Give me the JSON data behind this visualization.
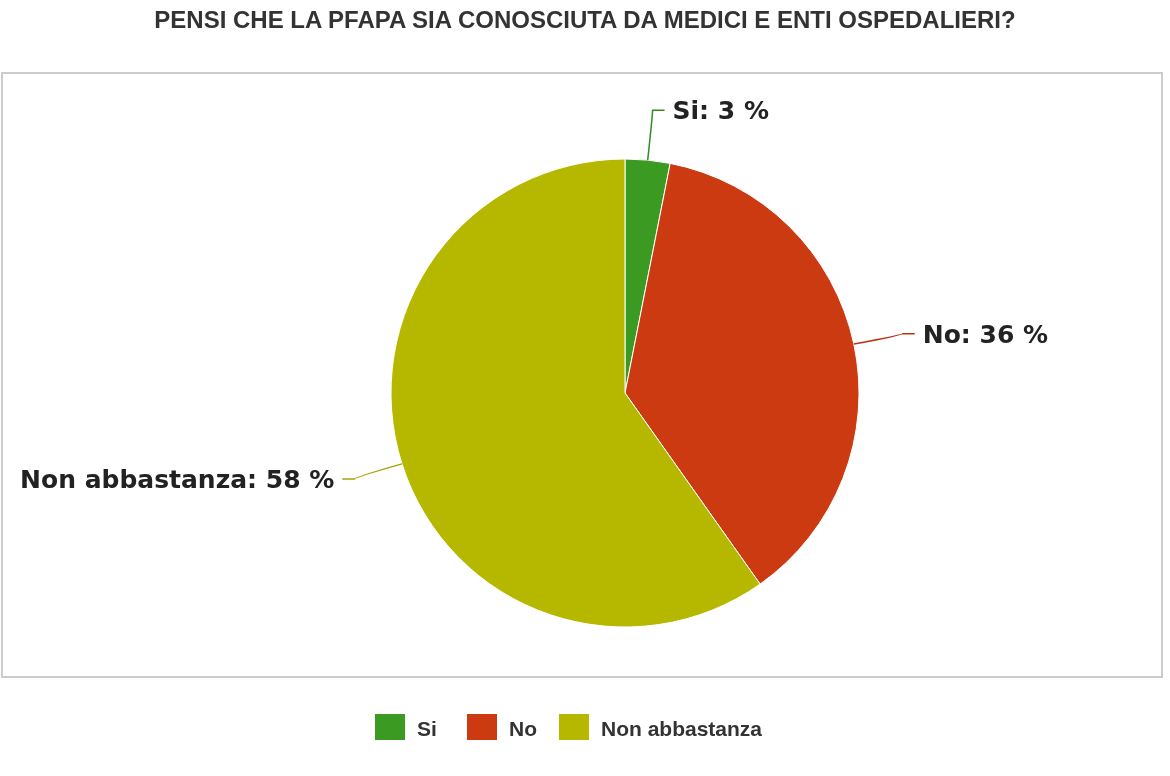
{
  "chart_data": {
    "type": "pie",
    "title": "PENSI CHE LA PFAPA SIA CONOSCIUTA DA MEDICI E ENTI OSPEDALIERI?",
    "categories": [
      "Si",
      "No",
      "Non abbastanza"
    ],
    "values": [
      3,
      36,
      58
    ],
    "value_labels": [
      "Si: 3 %",
      "No: 36 %",
      "Non abbastanza: 58 %"
    ],
    "colors": [
      "#3a9a22",
      "#cc3a12",
      "#b6b800"
    ],
    "legend": "bottom"
  }
}
